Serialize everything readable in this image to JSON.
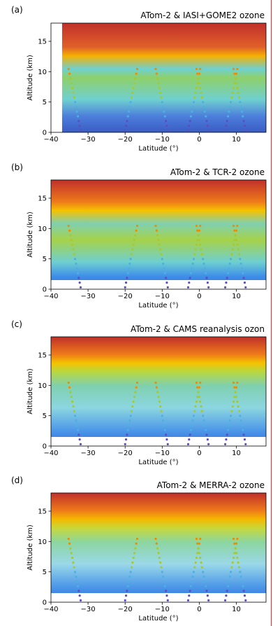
{
  "figure": {
    "colors": {
      "ocean_low": "#3b5cc4",
      "mid": "#6fd0d0",
      "green": "#9acd32",
      "high": "#f5b000",
      "strat": "#c0302a"
    },
    "panels": [
      {
        "label": "(a)",
        "title": "ATom-2 & IASI+GOME2 ozone"
      },
      {
        "label": "(b)",
        "title": "ATom-2 & TCR-2 ozone"
      },
      {
        "label": "(c)",
        "title": "ATom-2 & CAMS reanalysis ozon"
      },
      {
        "label": "(d)",
        "title": "ATom-2 & MERRA-2 ozone"
      }
    ]
  },
  "chart_data": [
    {
      "type": "heatmap",
      "title": "ATom-2 & IASI+GOME2 ozone",
      "xlabel": "Latitude (°)",
      "ylabel": "Altitude (km)",
      "xlim": [
        -40,
        18
      ],
      "ylim": [
        0,
        18
      ],
      "xticks": [
        -40,
        -30,
        -20,
        -10,
        0,
        10
      ],
      "yticks": [
        0,
        5,
        10,
        15
      ],
      "xticklabels": [
        "−40",
        "−30",
        "−20",
        "−10",
        "0",
        "10"
      ],
      "yticklabels": [
        "0",
        "5",
        "10",
        "15"
      ]
    },
    {
      "type": "heatmap",
      "title": "ATom-2 & TCR-2 ozone",
      "xlabel": "Latitude (°)",
      "ylabel": "Altitude (km)",
      "xlim": [
        -40,
        18
      ],
      "ylim": [
        0,
        18
      ],
      "xticks": [
        -40,
        -30,
        -20,
        -10,
        0,
        10
      ],
      "yticks": [
        0,
        5,
        10,
        15
      ],
      "xticklabels": [
        "−40",
        "−30",
        "−20",
        "−10",
        "0",
        "10"
      ],
      "yticklabels": [
        "0",
        "5",
        "10",
        "15"
      ]
    },
    {
      "type": "heatmap",
      "title": "ATom-2 & CAMS reanalysis ozon",
      "xlabel": "Latitude (°)",
      "ylabel": "Altitude (km)",
      "xlim": [
        -40,
        18
      ],
      "ylim": [
        0,
        18
      ],
      "xticks": [
        -40,
        -30,
        -20,
        -10,
        0,
        10
      ],
      "yticks": [
        0,
        5,
        10,
        15
      ],
      "xticklabels": [
        "−40",
        "−30",
        "−20",
        "−10",
        "0",
        "10"
      ],
      "yticklabels": [
        "0",
        "5",
        "10",
        "15"
      ]
    },
    {
      "type": "heatmap",
      "title": "ATom-2 & MERRA-2 ozone",
      "xlabel": "Latitude (°)",
      "ylabel": "Altitude (km)",
      "xlim": [
        -40,
        18
      ],
      "ylim": [
        0,
        18
      ],
      "xticks": [
        -40,
        -30,
        -20,
        -10,
        0,
        10
      ],
      "yticks": [
        0,
        5,
        10,
        15
      ],
      "xticklabels": [
        "−40",
        "−30",
        "−20",
        "−10",
        "0",
        "10"
      ],
      "yticklabels": [
        "0",
        "5",
        "10",
        "15"
      ]
    }
  ]
}
